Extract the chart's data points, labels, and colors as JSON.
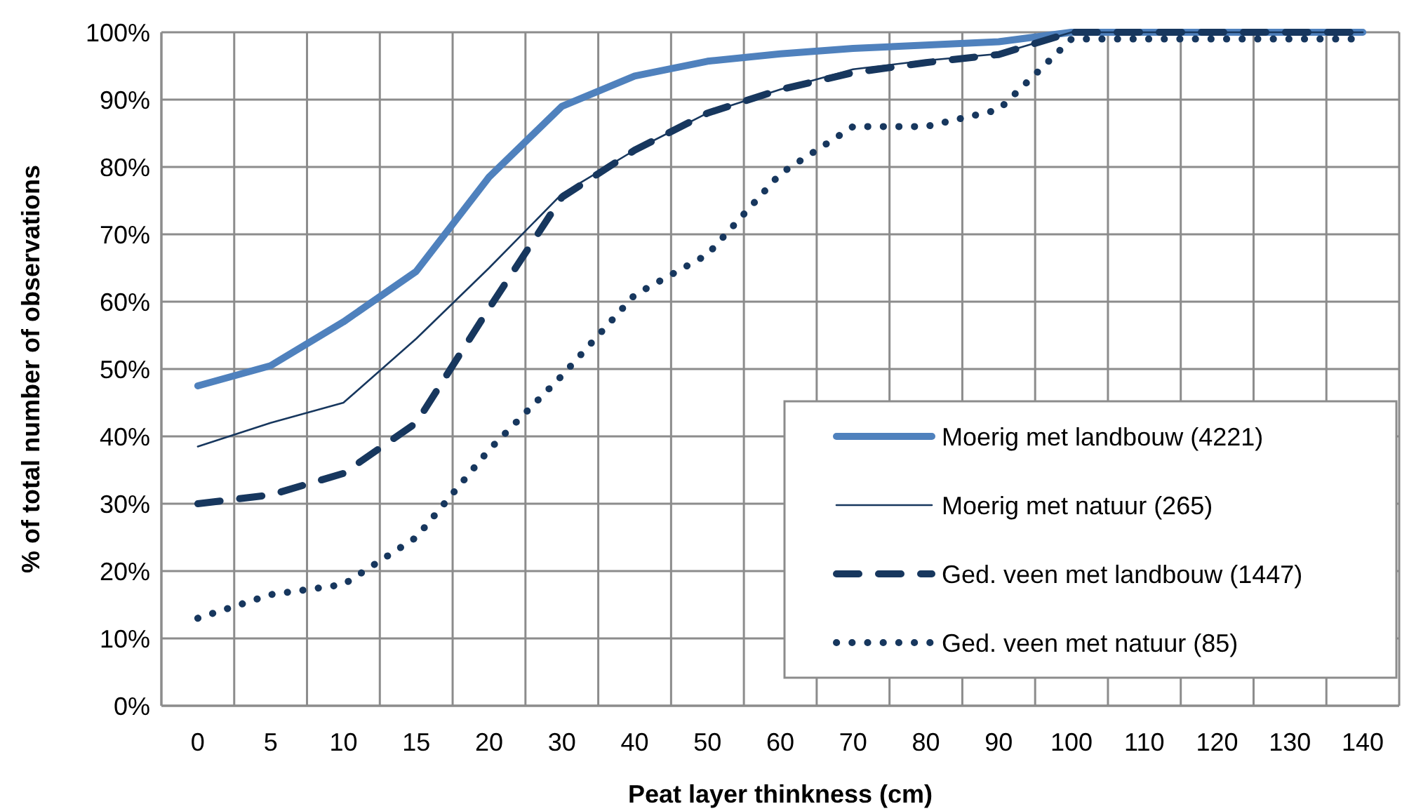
{
  "chart_data": {
    "type": "line",
    "xlabel": "Peat layer thinkness (cm)",
    "ylabel": "% of total number of observations",
    "categories": [
      "0",
      "5",
      "10",
      "15",
      "20",
      "30",
      "40",
      "50",
      "60",
      "70",
      "80",
      "90",
      "100",
      "110",
      "120",
      "130",
      "140"
    ],
    "ylim": [
      0,
      100
    ],
    "yticks": [
      {
        "value": 0,
        "label": "0%"
      },
      {
        "value": 10,
        "label": "10%"
      },
      {
        "value": 20,
        "label": "20%"
      },
      {
        "value": 30,
        "label": "30%"
      },
      {
        "value": 40,
        "label": "40%"
      },
      {
        "value": 50,
        "label": "50%"
      },
      {
        "value": 60,
        "label": "60%"
      },
      {
        "value": 70,
        "label": "70%"
      },
      {
        "value": 80,
        "label": "80%"
      },
      {
        "value": 90,
        "label": "90%"
      },
      {
        "value": 100,
        "label": "100%"
      }
    ],
    "grid": true,
    "legend": "bottom right",
    "marker": "none",
    "series": [
      {
        "name": "Moerig met landbouw (4221)",
        "color": "#4f81bd",
        "line_style": "solid",
        "values": [
          47.5,
          50.5,
          57,
          64.5,
          78.5,
          89,
          93.5,
          95.7,
          96.8,
          97.6,
          98.1,
          98.6,
          100,
          100,
          100,
          100,
          100
        ]
      },
      {
        "name": "Moerig met natuur (265)",
        "color": "#17375e",
        "line_style": "solid",
        "values": [
          38.5,
          42,
          45,
          54.5,
          65,
          76,
          82.5,
          88,
          91.5,
          94.5,
          95.8,
          96.8,
          100,
          100,
          100,
          100,
          100
        ]
      },
      {
        "name": "Ged. veen met landbouw (1447)",
        "color": "#17375e",
        "line_style": "dashed",
        "values": [
          30,
          31.3,
          34.5,
          42,
          59,
          75.5,
          82.5,
          88,
          91.5,
          94,
          95.5,
          96.7,
          100,
          100,
          100,
          100,
          100
        ]
      },
      {
        "name": "Ged. veen met natuur (85)",
        "color": "#17375e",
        "line_style": "dotted",
        "values": [
          13,
          16.5,
          18,
          25,
          38,
          49,
          61,
          67,
          79,
          86,
          86,
          88.5,
          99,
          99,
          99,
          99,
          99
        ]
      }
    ]
  }
}
